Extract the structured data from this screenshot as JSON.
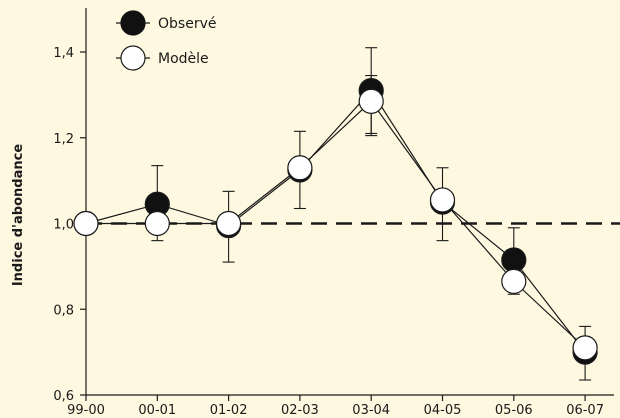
{
  "chart_data": {
    "type": "line",
    "categories": [
      "99-00",
      "00-01",
      "01-02",
      "02-03",
      "03-04",
      "04-05",
      "05-06",
      "06-07"
    ],
    "series": [
      {
        "name": "Observé",
        "marker": "filled-circle",
        "color": "#111111",
        "values": [
          1.0,
          1.045,
          0.995,
          1.125,
          1.31,
          1.05,
          0.915,
          0.7
        ],
        "err_low": [
          0,
          0,
          0,
          0.09,
          0.1,
          0.09,
          0,
          0.065
        ],
        "err_high": [
          0,
          0.09,
          0.08,
          0.09,
          0.1,
          0.08,
          0.075,
          0
        ]
      },
      {
        "name": "Modèle",
        "marker": "open-circle",
        "color": "#ffffff",
        "values": [
          1.0,
          1.0,
          1.0,
          1.13,
          1.285,
          1.055,
          0.865,
          0.71
        ],
        "err_low": [
          0,
          0.04,
          0.09,
          0,
          0.08,
          0,
          0.03,
          0
        ],
        "err_high": [
          0,
          0,
          0,
          0,
          0.06,
          0,
          0,
          0.05
        ]
      }
    ],
    "reference_line": {
      "y": 1.0,
      "style": "dashed"
    },
    "xlabel": "",
    "ylabel": "Indice d'abondance",
    "ylim": [
      0.6,
      1.5
    ],
    "yticks": [
      0.6,
      0.8,
      1.0,
      1.2,
      1.4
    ],
    "ytick_labels": [
      "0,6",
      "0,8",
      "1,0",
      "1,2",
      "1,4"
    ],
    "grid": false,
    "legend": {
      "placement": "top-left",
      "entries": [
        "Observé",
        "Modèle"
      ]
    }
  },
  "colors": {
    "background": "#fdf8df",
    "axis": "#1a1a1a",
    "filled_marker": "#111111",
    "open_marker": "#ffffff"
  }
}
